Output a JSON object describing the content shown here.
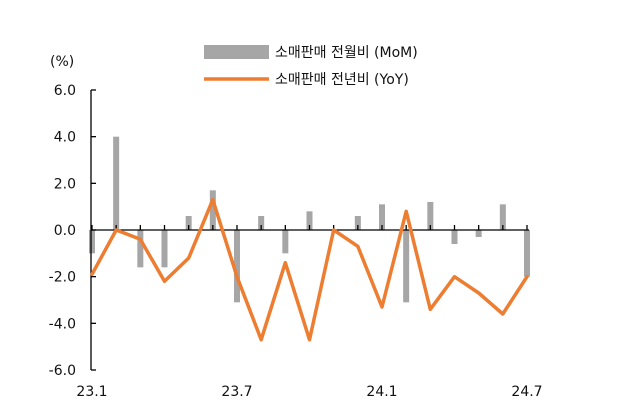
{
  "chart_data": {
    "type": "bar",
    "ylabel": "(%)",
    "ylim": [
      -6,
      6
    ],
    "yticks": [
      "6.0",
      "4.0",
      "2.0",
      "0.0",
      "-2.0",
      "-4.0",
      "-6.0"
    ],
    "x": [
      "23.1",
      "23.2",
      "23.3",
      "23.4",
      "23.5",
      "23.6",
      "23.7",
      "23.8",
      "23.9",
      "23.10",
      "23.11",
      "23.12",
      "24.1",
      "24.2",
      "24.3",
      "24.4",
      "24.5",
      "24.6",
      "24.7"
    ],
    "xtick_labels": [
      {
        "index": 0,
        "label": "23.1"
      },
      {
        "index": 6,
        "label": "23.7"
      },
      {
        "index": 12,
        "label": "24.1"
      },
      {
        "index": 18,
        "label": "24.7"
      }
    ],
    "legend_position": "top",
    "grid": false,
    "series": [
      {
        "name": "소매판매 전월비 (MoM)",
        "kind": "bar",
        "color": "#a6a6a6",
        "values": [
          -1.0,
          4.0,
          -1.6,
          -1.6,
          0.6,
          1.7,
          -3.1,
          0.6,
          -1.0,
          0.8,
          0.0,
          0.6,
          1.1,
          -3.1,
          1.2,
          -0.6,
          -0.3,
          1.1,
          -2.0
        ]
      },
      {
        "name": "소매판매 전년비 (YoY)",
        "kind": "line",
        "color": "#ed7d31",
        "values": [
          -1.9,
          0.0,
          -0.4,
          -2.2,
          -1.2,
          1.3,
          -2.0,
          -4.7,
          -1.4,
          -4.7,
          0.0,
          -0.7,
          -3.3,
          0.8,
          -3.4,
          -2.0,
          -2.7,
          -3.6,
          -2.0
        ]
      }
    ]
  }
}
